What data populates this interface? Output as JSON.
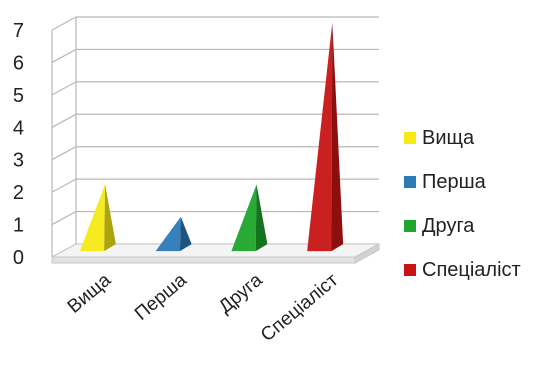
{
  "chart_data": {
    "type": "bar",
    "style": "3d-pyramid",
    "categories": [
      "Вища",
      "Перша",
      "Друга",
      "Спеціаліст"
    ],
    "values": [
      2,
      1,
      2,
      7
    ],
    "colors": [
      "#f5ea14",
      "#2a7ab8",
      "#1ea52c",
      "#c81414"
    ],
    "ylim": [
      0,
      7
    ],
    "yticks": [
      "0",
      "1",
      "2",
      "3",
      "4",
      "5",
      "6",
      "7"
    ],
    "grid": true,
    "legend_position": "right",
    "legend": [
      "Вища",
      "Перша",
      "Друга",
      "Спеціаліст"
    ]
  }
}
